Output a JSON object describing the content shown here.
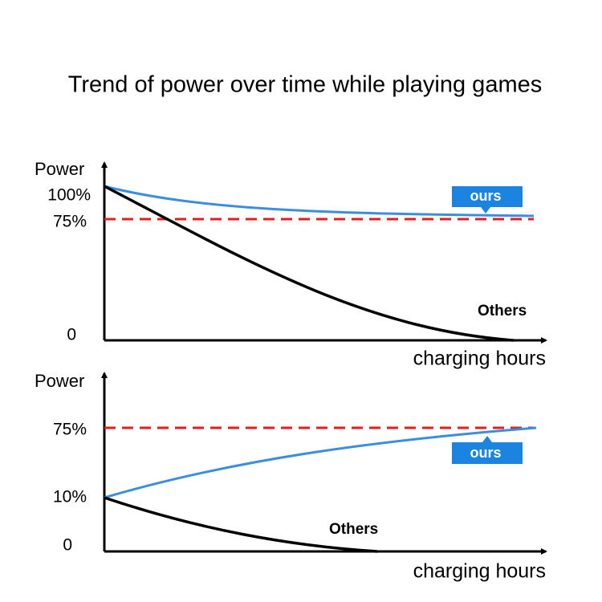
{
  "title": "Trend of power over time while playing games",
  "panels": [
    {
      "y_label": "Power",
      "ticks": [
        "100%",
        "75%",
        "0"
      ],
      "x_label": "charging hours",
      "ours_label": "ours",
      "others_label": "Others"
    },
    {
      "y_label": "Power",
      "ticks": [
        "75%",
        "10%",
        "0"
      ],
      "x_label": "charging hours",
      "ours_label": "ours",
      "others_label": "Others"
    }
  ]
}
